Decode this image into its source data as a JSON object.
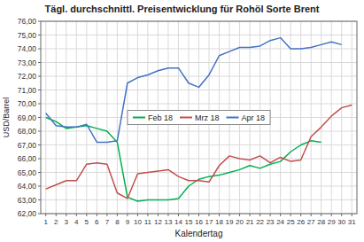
{
  "chart_data": {
    "type": "line",
    "title": "Tägl. durchschnittl. Preisentwicklung für Rohöl Sorte Brent",
    "x_label": "Kalendertag",
    "y_label": "USD/Barrel",
    "x": [
      1,
      2,
      3,
      4,
      5,
      6,
      7,
      8,
      9,
      10,
      11,
      12,
      13,
      14,
      15,
      16,
      17,
      18,
      19,
      20,
      21,
      22,
      23,
      24,
      25,
      26,
      27,
      28,
      29,
      30,
      31
    ],
    "series": [
      {
        "name": "Feb 18",
        "color": "#00b050",
        "values": [
          69.0,
          68.7,
          68.2,
          68.3,
          68.4,
          68.2,
          68.0,
          67.2,
          63.2,
          62.9,
          63.0,
          63.0,
          63.0,
          63.1,
          64.0,
          64.5,
          64.7,
          64.8,
          65.0,
          65.2,
          65.5,
          65.3,
          65.6,
          65.8,
          66.5,
          67.0,
          67.3,
          67.2,
          null,
          null,
          null
        ]
      },
      {
        "name": "Mrz 18",
        "color": "#c0504d",
        "values": [
          63.8,
          64.1,
          64.4,
          64.4,
          65.6,
          65.7,
          65.6,
          63.5,
          63.1,
          64.9,
          65.0,
          65.1,
          65.2,
          64.7,
          64.4,
          64.4,
          64.3,
          65.5,
          66.2,
          66.0,
          65.9,
          66.2,
          65.7,
          66.1,
          65.8,
          65.9,
          67.6,
          68.3,
          69.1,
          69.7,
          69.9
        ]
      },
      {
        "name": "Apr 18",
        "color": "#4472c4",
        "values": [
          69.3,
          68.4,
          68.3,
          68.3,
          68.5,
          67.2,
          67.2,
          67.3,
          71.5,
          71.9,
          72.1,
          72.4,
          72.6,
          72.6,
          71.5,
          71.2,
          72.1,
          73.5,
          73.8,
          74.1,
          74.1,
          74.2,
          74.6,
          74.8,
          74.0,
          74.0,
          74.1,
          74.3,
          74.5,
          74.3,
          null
        ]
      }
    ],
    "xlim": [
      0.5,
      31.5
    ],
    "xticks": [
      1,
      2,
      3,
      4,
      5,
      6,
      7,
      8,
      9,
      10,
      11,
      12,
      13,
      14,
      15,
      16,
      17,
      18,
      19,
      20,
      21,
      22,
      23,
      24,
      25,
      26,
      27,
      28,
      29,
      30,
      31
    ],
    "ylim": [
      62.0,
      76.0
    ],
    "yticks": [
      {
        "value": 62.0,
        "label": "62,00"
      },
      {
        "value": 63.0,
        "label": "63,00"
      },
      {
        "value": 64.0,
        "label": "64,00"
      },
      {
        "value": 65.0,
        "label": "65,00"
      },
      {
        "value": 66.0,
        "label": "66,00"
      },
      {
        "value": 67.0,
        "label": "67,00"
      },
      {
        "value": 68.0,
        "label": "68,00"
      },
      {
        "value": 69.0,
        "label": "69,00"
      },
      {
        "value": 70.0,
        "label": "70,00"
      },
      {
        "value": 71.0,
        "label": "71,00"
      },
      {
        "value": 72.0,
        "label": "72,00"
      },
      {
        "value": 73.0,
        "label": "73,00"
      },
      {
        "value": 74.0,
        "label": "74,00"
      },
      {
        "value": 75.0,
        "label": "75,00"
      },
      {
        "value": 76.0,
        "label": "76,00"
      }
    ],
    "grid": true,
    "legend": "center"
  }
}
